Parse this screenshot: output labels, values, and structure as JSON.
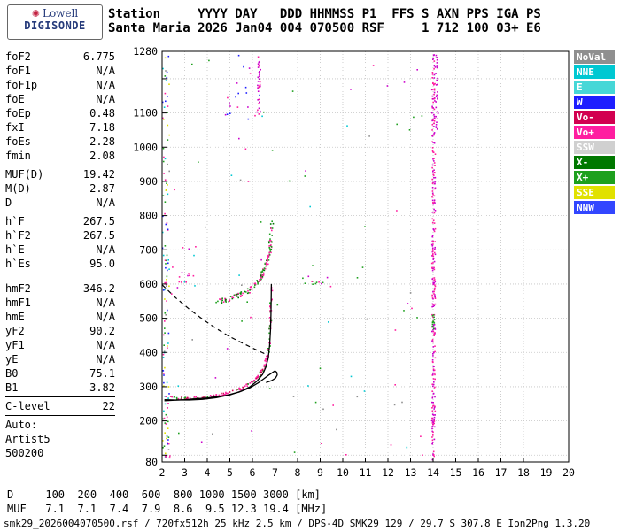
{
  "header": {
    "logo_top": "Lowell",
    "logo_bottom": "DIGISONDE",
    "line1": "Station     YYYY DAY   DDD HHMMSS P1  FFS S AXN PPS IGA PS",
    "line2": "Santa Maria 2026 Jan04 004 070500 RSF     1 712 100 03+ E6"
  },
  "params": {
    "groups": [
      {
        "rows": [
          [
            "foF2",
            "6.775"
          ],
          [
            "foF1",
            "N/A"
          ],
          [
            "foF1p",
            "N/A"
          ],
          [
            "foE",
            "N/A"
          ],
          [
            "foEp",
            "0.48"
          ],
          [
            "fxI",
            "7.18"
          ],
          [
            "foEs",
            "2.28"
          ],
          [
            "fmin",
            "2.08"
          ]
        ],
        "divider_after": true,
        "gap_after": false
      },
      {
        "rows": [
          [
            "MUF(D)",
            "19.42"
          ],
          [
            "M(D)",
            "2.87"
          ],
          [
            "D",
            "N/A"
          ]
        ],
        "divider_after": true,
        "gap_after": false
      },
      {
        "rows": [
          [
            "h`F",
            "267.5"
          ],
          [
            "h`F2",
            "267.5"
          ],
          [
            "h`E",
            "N/A"
          ],
          [
            "h`Es",
            "95.0"
          ]
        ],
        "divider_after": false,
        "gap_after": true
      },
      {
        "rows": [
          [
            "hmF2",
            "346.2"
          ],
          [
            "hmF1",
            "N/A"
          ],
          [
            "hmE",
            "N/A"
          ],
          [
            "yF2",
            "90.2"
          ],
          [
            "yF1",
            "N/A"
          ],
          [
            "yE",
            "N/A"
          ],
          [
            "B0",
            "75.1"
          ],
          [
            "B1",
            "3.82"
          ]
        ],
        "divider_after": true,
        "gap_after": false
      },
      {
        "rows": [
          [
            "C-level",
            "22"
          ]
        ],
        "divider_after": true,
        "gap_after": false
      },
      {
        "rows": [
          [
            "Auto:",
            ""
          ],
          [
            "Artist5",
            ""
          ],
          [
            "500200",
            ""
          ]
        ],
        "divider_after": false,
        "gap_after": false
      }
    ]
  },
  "legend": {
    "items": [
      {
        "label": "NoVal",
        "color": "#8f8f8f"
      },
      {
        "label": "NNE",
        "color": "#00c8d2"
      },
      {
        "label": "E",
        "color": "#46d7d7"
      },
      {
        "label": "W",
        "color": "#1e1eff"
      },
      {
        "label": "Vo-",
        "color": "#d20050"
      },
      {
        "label": "Vo+",
        "color": "#ff1ea0"
      },
      {
        "label": "SSW",
        "color": "#d0d0d0"
      },
      {
        "label": "X-",
        "color": "#007800"
      },
      {
        "label": "X+",
        "color": "#1ea01e"
      },
      {
        "label": "SSE",
        "color": "#e1e100"
      },
      {
        "label": "NNW",
        "color": "#3246ff"
      }
    ]
  },
  "chart_data": {
    "type": "scatter",
    "title": "Digisonde ionogram Santa Maria 2026 Jan04 070500",
    "xlabel": "[MHz]",
    "ylabel": "[km]",
    "xlim": [
      2,
      20
    ],
    "ylim": [
      80,
      1280
    ],
    "x_ticks": [
      2,
      3,
      4,
      5,
      6,
      7,
      8,
      9,
      10,
      11,
      12,
      13,
      14,
      15,
      16,
      17,
      18,
      19,
      20
    ],
    "y_tick_labels": [
      1280,
      1100,
      1000,
      900,
      800,
      700,
      600,
      500,
      400,
      300,
      200,
      80
    ],
    "grid": {
      "x_step": 1,
      "y_step": 100,
      "on": true
    },
    "traces": [
      {
        "name": "low-freq-noise-column",
        "kind": "cloud",
        "box": {
          "x": [
            2.02,
            2.32
          ],
          "y": [
            85,
            1275
          ]
        },
        "n": 120,
        "colors": [
          "#ff1ea0",
          "#00c8d2",
          "#1e1eff",
          "#1ea01e",
          "#8f8f8f",
          "#e1e100"
        ]
      },
      {
        "name": "scattered-noise",
        "kind": "cloud",
        "box": {
          "x": [
            2.4,
            13.6
          ],
          "y": [
            85,
            1275
          ]
        },
        "n": 80,
        "colors": [
          "#ff1ea0",
          "#00c8d2",
          "#1ea01e",
          "#cc00cc",
          "#8f8f8f"
        ]
      },
      {
        "name": "noise-left-mid",
        "kind": "cloud",
        "box": {
          "x": [
            2.3,
            3.5
          ],
          "y": [
            560,
            720
          ]
        },
        "n": 18,
        "colors": [
          "#ff1ea0",
          "#cc00cc",
          "#00c8d2"
        ]
      },
      {
        "name": "noise-top-column",
        "kind": "cloud",
        "box": {
          "x": [
            6.2,
            6.35
          ],
          "y": [
            1090,
            1270
          ]
        },
        "n": 30,
        "colors": [
          "#cc00cc",
          "#ff1ea0"
        ]
      },
      {
        "name": "noise-top-left",
        "kind": "cloud",
        "box": {
          "x": [
            4.8,
            6.4
          ],
          "y": [
            1080,
            1275
          ]
        },
        "n": 22,
        "colors": [
          "#cc00cc",
          "#ff1ea0",
          "#1e1eff"
        ]
      },
      {
        "name": "mid-band-specks",
        "kind": "cloud",
        "box": {
          "x": [
            8.1,
            9.6
          ],
          "y": [
            590,
            655
          ]
        },
        "n": 14,
        "colors": [
          "#1ea01e",
          "#ff1ea0",
          "#cc00cc"
        ]
      },
      {
        "name": "interference-14MHz",
        "kind": "cloud",
        "box": {
          "x": [
            13.95,
            14.1
          ],
          "y": [
            85,
            1275
          ]
        },
        "n": 280,
        "colors": [
          "#cc00cc",
          "#ff1ea0"
        ]
      },
      {
        "name": "interference-14MHz-green",
        "kind": "cloud",
        "box": {
          "x": [
            13.97,
            14.06
          ],
          "y": [
            460,
            530
          ]
        },
        "n": 12,
        "colors": [
          "#1ea01e"
        ]
      },
      {
        "name": "interference-14MHz-top",
        "kind": "cloud",
        "box": {
          "x": [
            14.12,
            14.22
          ],
          "y": [
            1050,
            1275
          ]
        },
        "n": 30,
        "colors": [
          "#cc00cc"
        ]
      },
      {
        "name": "Es-trace",
        "kind": "cloud",
        "box": {
          "x": [
            2.05,
            2.35
          ],
          "y": [
            92,
            100
          ]
        },
        "n": 10,
        "colors": [
          "#00c8d2",
          "#ff1ea0"
        ]
      },
      {
        "name": "F2-first-hop-echo",
        "kind": "cloud",
        "n": 170,
        "jx": 0.05,
        "jy": 4,
        "colors": [
          "#ff1ea0",
          "#d20050",
          "#ff1ea0",
          "#1ea01e"
        ],
        "points": [
          [
            2.15,
            273
          ],
          [
            2.5,
            269
          ],
          [
            2.8,
            267
          ],
          [
            3.1,
            266
          ],
          [
            3.4,
            266
          ],
          [
            3.7,
            267
          ],
          [
            4.0,
            269
          ],
          [
            4.3,
            272
          ],
          [
            4.6,
            276
          ],
          [
            4.9,
            281
          ],
          [
            5.2,
            287
          ],
          [
            5.5,
            295
          ],
          [
            5.8,
            305
          ],
          [
            6.0,
            314
          ],
          [
            6.2,
            326
          ],
          [
            6.35,
            338
          ],
          [
            6.5,
            355
          ],
          [
            6.6,
            372
          ],
          [
            6.68,
            392
          ],
          [
            6.73,
            415
          ],
          [
            6.77,
            445
          ],
          [
            6.8,
            480
          ],
          [
            6.82,
            520
          ],
          [
            6.83,
            555
          ],
          [
            6.84,
            590
          ]
        ]
      },
      {
        "name": "F2-second-hop-echo",
        "kind": "cloud",
        "n": 150,
        "jx": 0.07,
        "jy": 8,
        "colors": [
          "#1ea01e",
          "#ff1ea0",
          "#007800",
          "#ff1ea0"
        ],
        "points": [
          [
            4.4,
            548
          ],
          [
            4.7,
            552
          ],
          [
            5.0,
            557
          ],
          [
            5.3,
            564
          ],
          [
            5.6,
            573
          ],
          [
            5.9,
            585
          ],
          [
            6.1,
            597
          ],
          [
            6.3,
            613
          ],
          [
            6.45,
            630
          ],
          [
            6.6,
            652
          ],
          [
            6.7,
            677
          ],
          [
            6.78,
            705
          ],
          [
            6.83,
            740
          ],
          [
            6.87,
            778
          ]
        ]
      },
      {
        "name": "autoscaled-trace",
        "kind": "path",
        "dash": null,
        "width": 1.3,
        "color": "#000000",
        "points": [
          [
            2.1,
            262
          ],
          [
            2.6,
            261
          ],
          [
            3.2,
            261
          ],
          [
            3.8,
            263
          ],
          [
            4.4,
            268
          ],
          [
            5.0,
            276
          ],
          [
            5.5,
            287
          ],
          [
            5.9,
            300
          ],
          [
            6.2,
            316
          ],
          [
            6.45,
            336
          ],
          [
            6.6,
            358
          ],
          [
            6.7,
            385
          ],
          [
            6.76,
            420
          ],
          [
            6.8,
            465
          ],
          [
            6.82,
            510
          ],
          [
            6.83,
            560
          ],
          [
            6.84,
            600
          ]
        ]
      },
      {
        "name": "true-height-profile",
        "kind": "path",
        "dash": null,
        "width": 1.3,
        "color": "#000000",
        "points": [
          [
            2.1,
            259
          ],
          [
            3.0,
            262
          ],
          [
            4.0,
            267
          ],
          [
            4.8,
            274
          ],
          [
            5.4,
            284
          ],
          [
            5.9,
            297
          ],
          [
            6.25,
            311
          ],
          [
            6.5,
            323
          ],
          [
            6.7,
            333
          ],
          [
            6.88,
            341
          ],
          [
            7.0,
            346
          ],
          [
            7.08,
            342
          ],
          [
            7.1,
            334
          ],
          [
            7.02,
            325
          ],
          [
            6.85,
            318
          ],
          [
            6.6,
            312
          ]
        ]
      },
      {
        "name": "muf-transmission-curve",
        "kind": "path",
        "dash": "5,4",
        "width": 1.2,
        "color": "#000000",
        "points": [
          [
            2.0,
            598
          ],
          [
            2.6,
            560
          ],
          [
            3.2,
            527
          ],
          [
            3.8,
            497
          ],
          [
            4.4,
            470
          ],
          [
            5.0,
            446
          ],
          [
            5.6,
            426
          ],
          [
            6.1,
            410
          ],
          [
            6.55,
            396
          ]
        ]
      }
    ]
  },
  "muf_table": {
    "rows": [
      {
        "label": "D",
        "values": [
          "100",
          "200",
          "400",
          "600",
          "800",
          "1000",
          "1500",
          "3000"
        ],
        "unit": "[km]"
      },
      {
        "label": "MUF",
        "values": [
          "7.1",
          "7.1",
          "7.4",
          "7.9",
          "8.6",
          "9.5",
          "12.3",
          "19.4"
        ],
        "unit": "[MHz]"
      }
    ]
  },
  "status_bar": "smk29_2026004070500.rsf / 720fx512h 25 kHz 2.5 km / DPS-4D SMK29 129 / 29.7 S 307.8 E Ion2Png 1.3.20"
}
